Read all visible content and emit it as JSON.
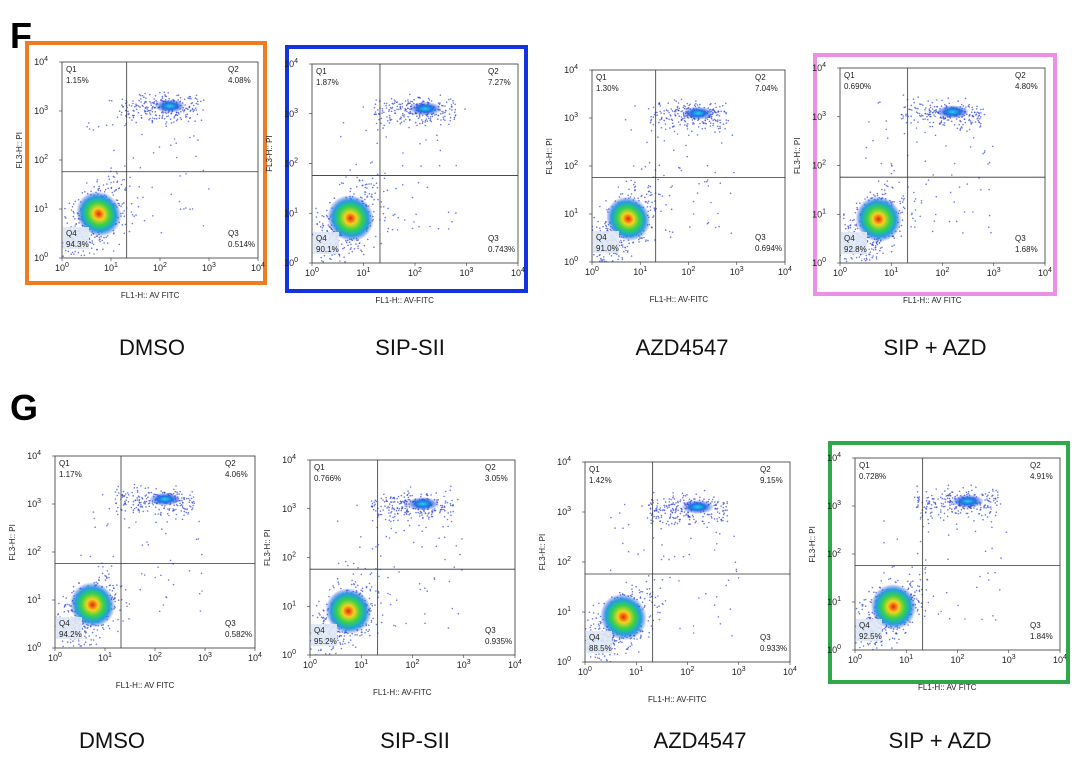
{
  "panels": [
    {
      "letter": "F",
      "plots": [
        {
          "condition": "DMSO",
          "frame_color": "#f07c22",
          "x_label": "FL1-H:: AV FITC",
          "y_label": "FL3-H:: PI",
          "quadrants": [
            {
              "name": "Q1",
              "percent": "1.15%"
            },
            {
              "name": "Q2",
              "percent": "4.08%"
            },
            {
              "name": "Q3",
              "percent": "0.514%"
            },
            {
              "name": "Q4",
              "percent": "94.3%"
            }
          ]
        },
        {
          "condition": "SIP-SII",
          "frame_color": "#1433e0",
          "x_label": "FL1-H:: AV-FITC",
          "y_label": "FL3-H:: PI",
          "quadrants": [
            {
              "name": "Q1",
              "percent": "1.87%"
            },
            {
              "name": "Q2",
              "percent": "7.27%"
            },
            {
              "name": "Q3",
              "percent": "0.743%"
            },
            {
              "name": "Q4",
              "percent": "90.1%"
            }
          ]
        },
        {
          "condition": "AZD4547",
          "x_label": "FL1-H:: AV-FITC",
          "y_label": "FL3-H:: PI",
          "quadrants": [
            {
              "name": "Q1",
              "percent": "1.30%"
            },
            {
              "name": "Q2",
              "percent": "7.04%"
            },
            {
              "name": "Q3",
              "percent": "0.694%"
            },
            {
              "name": "Q4",
              "percent": "91.0%"
            }
          ]
        },
        {
          "condition": "SIP + AZD",
          "frame_color": "#ee8fe6",
          "x_label": "FL1-H:: AV FITC",
          "y_label": "FL3-H:: PI",
          "quadrants": [
            {
              "name": "Q1",
              "percent": "0.690%"
            },
            {
              "name": "Q2",
              "percent": "4.80%"
            },
            {
              "name": "Q3",
              "percent": "1.68%"
            },
            {
              "name": "Q4",
              "percent": "92.8%"
            }
          ]
        }
      ]
    },
    {
      "letter": "G",
      "plots": [
        {
          "condition": "DMSO",
          "x_label": "FL1-H:: AV FITC",
          "y_label": "FL3-H:: PI",
          "quadrants": [
            {
              "name": "Q1",
              "percent": "1.17%"
            },
            {
              "name": "Q2",
              "percent": "4.06%"
            },
            {
              "name": "Q3",
              "percent": "0.582%"
            },
            {
              "name": "Q4",
              "percent": "94.2%"
            }
          ]
        },
        {
          "condition": "SIP-SII",
          "x_label": "FL1-H:: AV-FITC",
          "y_label": "FL3-H:: PI",
          "quadrants": [
            {
              "name": "Q1",
              "percent": "0.766%"
            },
            {
              "name": "Q2",
              "percent": "3.05%"
            },
            {
              "name": "Q3",
              "percent": "0.935%"
            },
            {
              "name": "Q4",
              "percent": "95.2%"
            }
          ]
        },
        {
          "condition": "AZD4547",
          "x_label": "FL1-H:: AV-FITC",
          "y_label": "FL3-H:: PI",
          "quadrants": [
            {
              "name": "Q1",
              "percent": "1.42%"
            },
            {
              "name": "Q2",
              "percent": "9.15%"
            },
            {
              "name": "Q3",
              "percent": "0.933%"
            },
            {
              "name": "Q4",
              "percent": "88.5%"
            }
          ]
        },
        {
          "condition": "SIP + AZD",
          "frame_color": "#2fa84a",
          "x_label": "FL1-H:: AV FITC",
          "y_label": "FL3-H:: PI",
          "quadrants": [
            {
              "name": "Q1",
              "percent": "0.728%"
            },
            {
              "name": "Q2",
              "percent": "4.91%"
            },
            {
              "name": "Q3",
              "percent": "1.84%"
            },
            {
              "name": "Q4",
              "percent": "92.5%"
            }
          ]
        }
      ]
    }
  ],
  "tick_base": "10",
  "tick_exponents": [
    0,
    1,
    2,
    3,
    4
  ]
}
